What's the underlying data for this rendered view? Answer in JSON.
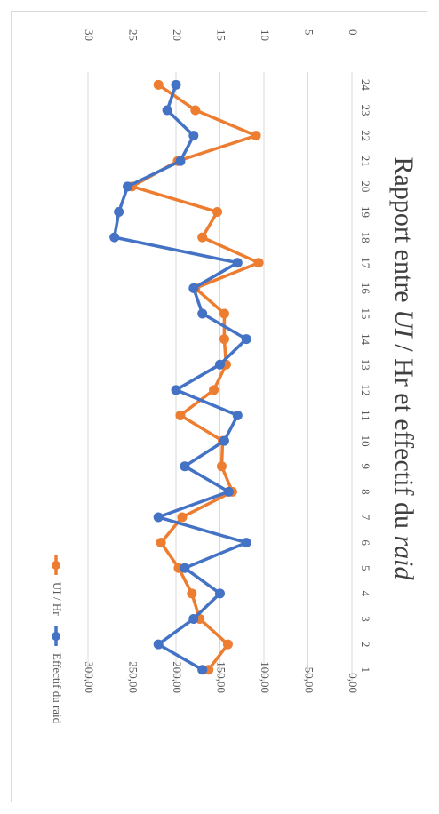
{
  "chart_data": {
    "type": "line",
    "orientation": "rotated-90-clockwise",
    "title": {
      "part1": "Rapport entre ",
      "part2": "UI",
      "part3": " / Hr et effectif du ",
      "part4": "raid"
    },
    "categories": [
      "1",
      "2",
      "3",
      "4",
      "5",
      "6",
      "7",
      "8",
      "9",
      "10",
      "11",
      "12",
      "13",
      "14",
      "15",
      "16",
      "17",
      "18",
      "19",
      "20",
      "21",
      "22",
      "23",
      "24"
    ],
    "primary_axis": {
      "range": [
        0,
        300
      ],
      "ticks": [
        "0,00",
        "50,00",
        "100,00",
        "150,00",
        "200,00",
        "250,00",
        "300,00"
      ]
    },
    "secondary_axis": {
      "range": [
        0,
        30
      ],
      "ticks": [
        "0",
        "5",
        "10",
        "15",
        "20",
        "25",
        "30"
      ]
    },
    "grid": true,
    "legend": "bottom",
    "series": [
      {
        "name": "UI / Hr",
        "axis": "primary",
        "color": "#ED7D31",
        "values": [
          163,
          141,
          173,
          182,
          197,
          217,
          193,
          136,
          148,
          147,
          195,
          157,
          143,
          145,
          145,
          178,
          106,
          170,
          153,
          250,
          198,
          109,
          178,
          220
        ]
      },
      {
        "name": "Effectif du raid",
        "axis": "secondary",
        "color": "#4472C4",
        "values": [
          17,
          22,
          18,
          15,
          19,
          12,
          22,
          14,
          19,
          14.5,
          13,
          20,
          15,
          12,
          17,
          18,
          13,
          27,
          26.5,
          25.5,
          19.5,
          18,
          21,
          20
        ]
      }
    ]
  }
}
